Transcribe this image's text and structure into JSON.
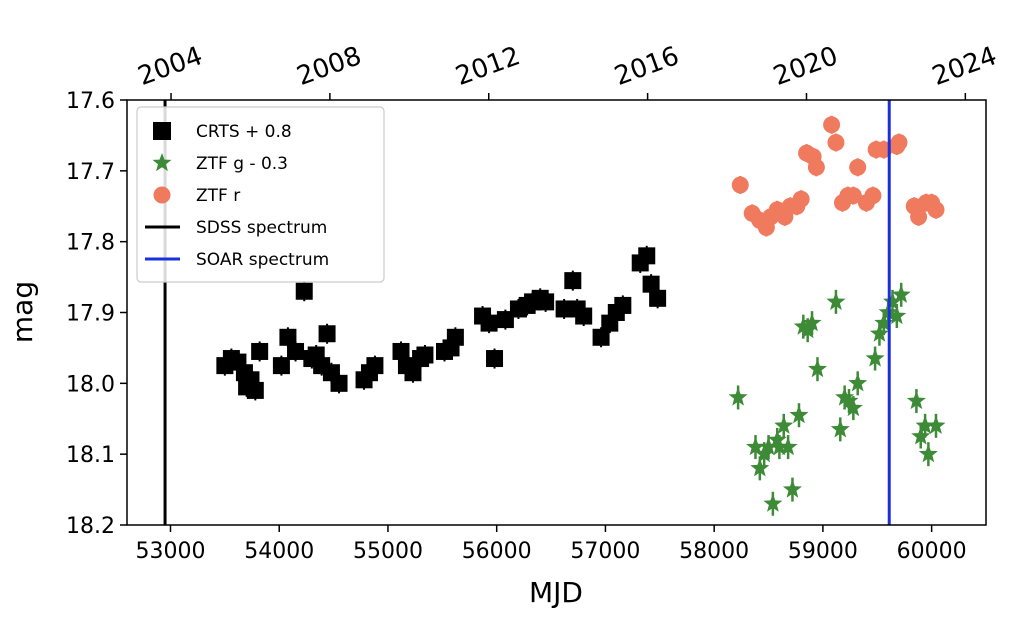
{
  "chart_data": {
    "type": "scatter",
    "xlabel": "MJD",
    "ylabel": "mag",
    "xlim": [
      52600,
      60500
    ],
    "ylim": [
      18.2,
      17.6
    ],
    "y_inverted": true,
    "xticks": [
      "53000",
      "54000",
      "55000",
      "56000",
      "57000",
      "58000",
      "59000",
      "60000"
    ],
    "yticks": [
      "17.6",
      "17.7",
      "17.8",
      "17.9",
      "18.0",
      "18.1",
      "18.2"
    ],
    "top_axis": {
      "ticks": [
        "2004",
        "2008",
        "2012",
        "2016",
        "2020",
        "2024"
      ],
      "tick_mjd": [
        53005,
        54466,
        55927,
        57388,
        58849,
        60310
      ]
    },
    "grid": false,
    "legend_position": "top-left",
    "series": [
      {
        "name": "CRTS + 0.8",
        "marker": "square",
        "color": "#000000",
        "x": [
          53500,
          53560,
          53620,
          53680,
          53700,
          53740,
          53780,
          53820,
          54020,
          54080,
          54150,
          54230,
          54300,
          54340,
          54390,
          54440,
          54480,
          54550,
          54780,
          54830,
          54880,
          55120,
          55170,
          55230,
          55300,
          55340,
          55520,
          55580,
          55620,
          55870,
          55930,
          55980,
          56080,
          56200,
          56280,
          56330,
          56400,
          56450,
          56620,
          56700,
          56740,
          56800,
          56960,
          57040,
          57100,
          57160,
          57320,
          57380,
          57420,
          57480
        ],
        "y": [
          17.975,
          17.965,
          17.97,
          17.985,
          18.005,
          17.995,
          18.01,
          17.955,
          17.975,
          17.935,
          17.955,
          17.87,
          17.965,
          17.96,
          17.975,
          17.93,
          17.985,
          18.0,
          17.995,
          17.985,
          17.975,
          17.955,
          17.975,
          17.985,
          17.965,
          17.96,
          17.955,
          17.95,
          17.935,
          17.905,
          17.915,
          17.965,
          17.91,
          17.895,
          17.89,
          17.885,
          17.88,
          17.885,
          17.895,
          17.855,
          17.895,
          17.905,
          17.935,
          17.915,
          17.9,
          17.89,
          17.83,
          17.82,
          17.86,
          17.88
        ]
      },
      {
        "name": "ZTF g - 0.3",
        "marker": "star",
        "color": "#3d8b37",
        "x": [
          58220,
          58380,
          58420,
          58460,
          58500,
          58540,
          58580,
          58600,
          58640,
          58680,
          58720,
          58780,
          58820,
          58860,
          58900,
          58950,
          59120,
          59160,
          59200,
          59240,
          59280,
          59320,
          59480,
          59520,
          59560,
          59600,
          59640,
          59680,
          59720,
          59860,
          59900,
          59940,
          59970,
          60040
        ],
        "y": [
          18.02,
          18.09,
          18.12,
          18.1,
          18.09,
          18.17,
          18.08,
          18.09,
          18.06,
          18.09,
          18.15,
          18.045,
          17.92,
          17.925,
          17.915,
          17.98,
          17.885,
          18.065,
          18.02,
          18.025,
          18.035,
          18.0,
          17.965,
          17.93,
          17.915,
          17.9,
          17.885,
          17.905,
          17.875,
          18.025,
          18.075,
          18.06,
          18.1,
          18.06
        ]
      },
      {
        "name": "ZTF r",
        "marker": "circle",
        "color": "#f07a5e",
        "x": [
          58240,
          58350,
          58420,
          58480,
          58520,
          58580,
          58650,
          58700,
          58760,
          58800,
          58850,
          58910,
          58940,
          59080,
          59120,
          59180,
          59230,
          59280,
          59320,
          59400,
          59460,
          59490,
          59560,
          59680,
          59700,
          59840,
          59880,
          59950,
          60000,
          60040
        ],
        "y": [
          17.72,
          17.76,
          17.77,
          17.78,
          17.765,
          17.755,
          17.765,
          17.75,
          17.75,
          17.74,
          17.675,
          17.68,
          17.695,
          17.635,
          17.66,
          17.745,
          17.735,
          17.735,
          17.695,
          17.745,
          17.735,
          17.67,
          17.67,
          17.665,
          17.66,
          17.75,
          17.765,
          17.745,
          17.745,
          17.755
        ]
      },
      {
        "name": "SDSS spectrum",
        "type": "vline",
        "color": "#000000",
        "x": 52950
      },
      {
        "name": "SOAR spectrum",
        "type": "vline",
        "color": "#1a2fe0",
        "x": 59610
      }
    ]
  }
}
